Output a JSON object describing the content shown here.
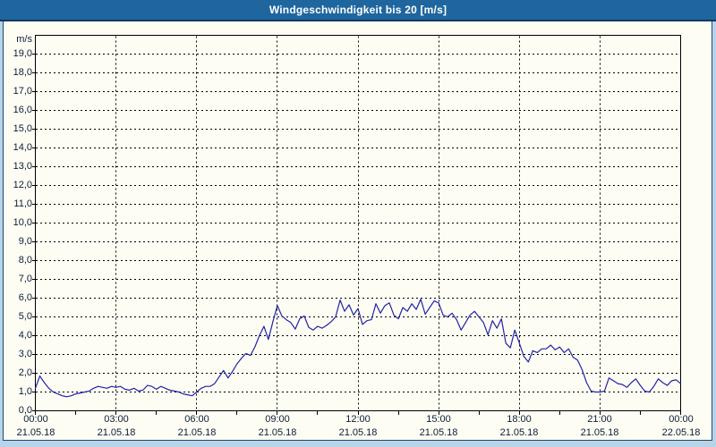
{
  "title": "Windgeschwindigkeit bis 20 [m/s]",
  "colors": {
    "titlebar_bg": "#1f669e",
    "titlebar_border": "#10395c",
    "page_bg": "#b9d3e8",
    "panel_bg": "#fdfdf4",
    "panel_border": "#1c4a73",
    "grid": "#000000",
    "line": "#2222aa",
    "label": "#0d1c33"
  },
  "chart_data": {
    "type": "line",
    "title": "Windgeschwindigkeit bis 20 [m/s]",
    "ylabel_unit": "m/s",
    "ylim": [
      0,
      20
    ],
    "ytick_step": 1,
    "ytick_labels": [
      "0,0",
      "1,0",
      "2,0",
      "3,0",
      "4,0",
      "5,0",
      "6,0",
      "7,0",
      "8,0",
      "9,0",
      "10,0",
      "11,0",
      "12,0",
      "13,0",
      "14,0",
      "15,0",
      "16,0",
      "17,0",
      "18,0",
      "19,0"
    ],
    "grid": "dashed",
    "legend": "none",
    "x_axis": {
      "range_hours": [
        0,
        24
      ],
      "minor_tick_interval_hours": 1.5,
      "major_ticks": [
        {
          "hour": 0,
          "time": "00:00",
          "date": "21.05.18"
        },
        {
          "hour": 3,
          "time": "03:00",
          "date": "21.05.18"
        },
        {
          "hour": 6,
          "time": "06:00",
          "date": "21.05.18"
        },
        {
          "hour": 9,
          "time": "09:00",
          "date": "21.05.18"
        },
        {
          "hour": 12,
          "time": "12:00",
          "date": "21.05.18"
        },
        {
          "hour": 15,
          "time": "15:00",
          "date": "21.05.18"
        },
        {
          "hour": 18,
          "time": "18:00",
          "date": "21.05.18"
        },
        {
          "hour": 21,
          "time": "21:00",
          "date": "21.05.18"
        },
        {
          "hour": 24,
          "time": "00:00",
          "date": "22.05.18"
        }
      ]
    },
    "series": [
      {
        "name": "Windgeschwindigkeit",
        "unit": "m/s",
        "start_hour": 0,
        "interval_minutes": 10,
        "values": [
          1.2,
          1.85,
          1.5,
          1.2,
          1.0,
          0.9,
          0.8,
          0.75,
          0.8,
          0.9,
          0.95,
          1.0,
          1.05,
          1.2,
          1.3,
          1.25,
          1.2,
          1.3,
          1.25,
          1.3,
          1.15,
          1.1,
          1.2,
          1.05,
          1.1,
          1.35,
          1.3,
          1.15,
          1.3,
          1.2,
          1.1,
          1.05,
          1.0,
          0.9,
          0.85,
          0.8,
          1.0,
          1.2,
          1.3,
          1.3,
          1.45,
          1.8,
          2.15,
          1.75,
          2.1,
          2.5,
          2.8,
          3.05,
          2.95,
          3.4,
          4.0,
          4.5,
          3.8,
          4.75,
          5.6,
          5.05,
          4.85,
          4.7,
          4.35,
          4.9,
          5.05,
          4.45,
          4.3,
          4.5,
          4.4,
          4.55,
          4.75,
          5.0,
          5.9,
          5.3,
          5.65,
          5.1,
          5.45,
          4.6,
          4.8,
          4.85,
          5.7,
          5.2,
          5.6,
          5.75,
          5.1,
          4.9,
          5.5,
          5.3,
          5.7,
          5.4,
          5.95,
          5.15,
          5.5,
          5.85,
          5.75,
          5.1,
          5.0,
          5.2,
          4.85,
          4.3,
          4.7,
          5.1,
          5.3,
          5.0,
          4.7,
          4.05,
          4.8,
          4.4,
          4.9,
          3.6,
          3.35,
          4.3,
          3.6,
          2.9,
          2.6,
          3.2,
          3.1,
          3.3,
          3.3,
          3.5,
          3.25,
          3.4,
          3.1,
          3.3,
          2.85,
          2.7,
          2.2,
          1.5,
          1.05,
          1.0,
          1.0,
          1.05,
          1.75,
          1.6,
          1.45,
          1.4,
          1.25,
          1.5,
          1.7,
          1.35,
          1.05,
          1.0,
          1.3,
          1.7,
          1.5,
          1.35,
          1.6,
          1.65,
          1.45
        ]
      }
    ]
  }
}
